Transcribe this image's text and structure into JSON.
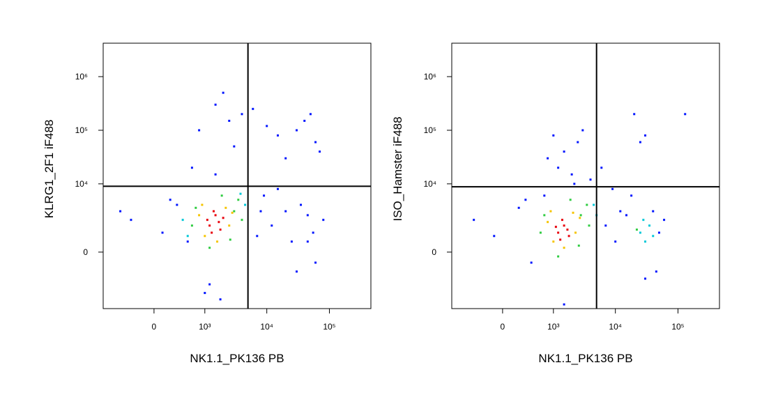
{
  "chart_data": [
    {
      "type": "scatter",
      "x_label": "NK1.1_PK136 PB",
      "y_label": "KLRG1_2F1 iF488",
      "xscale": "biexponential",
      "yscale": "biexponential",
      "xlim": [
        -1000,
        460000
      ],
      "ylim": [
        -6000,
        4200000
      ],
      "xticks": [
        0,
        {
          "value": 1000,
          "label": "10³"
        },
        {
          "value": 10000,
          "label": "10⁴"
        },
        {
          "value": 100000,
          "label": "10⁵"
        }
      ],
      "yticks": [
        0,
        {
          "value": 10000,
          "label": "10⁴"
        },
        {
          "value": 100000,
          "label": "10⁵"
        },
        {
          "value": 1000000,
          "label": "10⁶"
        }
      ],
      "gates": {
        "x": 5000,
        "y": 9000
      },
      "series": [
        {
          "color": "#0015ff",
          "x": [
            -300,
            100,
            300,
            -500,
            2000,
            1500,
            800,
            600,
            1500,
            3000,
            4000,
            2500,
            6000,
            10000,
            15000,
            20000,
            30000,
            40000,
            50000,
            60000,
            70000,
            8000,
            12000,
            25000,
            45000,
            55000,
            35000,
            9000,
            7000,
            1200,
            1800,
            1000,
            500,
            200,
            80000,
            45000,
            30000,
            20000,
            60000,
            15000
          ],
          "y": [
            2000,
            1000,
            4000,
            3000,
            500000,
            300000,
            100000,
            20000,
            15000,
            50000,
            200000,
            150000,
            250000,
            120000,
            80000,
            30000,
            100000,
            150000,
            200000,
            60000,
            40000,
            3000,
            1500,
            500,
            2500,
            1000,
            4000,
            6000,
            800,
            -2000,
            -4000,
            -3000,
            500,
            5000,
            2000,
            500,
            -1000,
            3000,
            -500,
            8000
          ]
        },
        {
          "color": "#00c8d8",
          "x": [
            400,
            4500,
            500,
            3800
          ],
          "y": [
            2000,
            4000,
            800,
            6500
          ]
        },
        {
          "color": "#2ecc40",
          "x": [
            600,
            3000,
            700,
            3500,
            1200,
            2600,
            1900,
            4000
          ],
          "y": [
            1500,
            3000,
            3500,
            5000,
            200,
            600,
            6000,
            2000
          ]
        },
        {
          "color": "#f5c400",
          "x": [
            800,
            2500,
            1000,
            2200,
            900,
            2800,
            1600
          ],
          "y": [
            2500,
            1500,
            800,
            3500,
            4000,
            2800,
            500
          ]
        },
        {
          "color": "#e8000b",
          "x": [
            1200,
            1500,
            1800,
            1400,
            1100,
            1700,
            2000,
            1300
          ],
          "y": [
            1500,
            2500,
            1200,
            3000,
            2000,
            1800,
            2200,
            1000
          ]
        }
      ]
    },
    {
      "type": "scatter",
      "x_label": "NK1.1_PK136 PB",
      "y_label": "ISO_Hamster iF488",
      "xscale": "biexponential",
      "yscale": "biexponential",
      "xlim": [
        -1000,
        460000
      ],
      "ylim": [
        -6000,
        4200000
      ],
      "xticks": [
        0,
        {
          "value": 1000,
          "label": "10³"
        },
        {
          "value": 10000,
          "label": "10⁴"
        },
        {
          "value": 100000,
          "label": "10⁵"
        }
      ],
      "yticks": [
        0,
        {
          "value": 10000,
          "label": "10⁴"
        },
        {
          "value": 100000,
          "label": "10⁵"
        },
        {
          "value": 1000000,
          "label": "10⁶"
        }
      ],
      "gates": {
        "x": 5000,
        "y": 8800
      },
      "series": [
        {
          "color": "#0015ff",
          "x": [
            -400,
            -100,
            200,
            400,
            1000,
            1500,
            2500,
            3000,
            800,
            1200,
            2000,
            4000,
            6000,
            9000,
            12000,
            20000,
            25000,
            30000,
            40000,
            50000,
            18000,
            130000,
            7000,
            10000,
            15000,
            30000,
            45000,
            60000,
            700,
            300,
            1500,
            2200
          ],
          "y": [
            2000,
            800,
            3500,
            -500,
            80000,
            40000,
            60000,
            100000,
            30000,
            20000,
            15000,
            12000,
            20000,
            8000,
            3000,
            200000,
            60000,
            80000,
            3000,
            1000,
            6000,
            200000,
            1500,
            500,
            2500,
            -1500,
            -1000,
            2000,
            6000,
            5000,
            -5000,
            10000
          ]
        },
        {
          "color": "#00c8d8",
          "x": [
            25000,
            30000,
            35000,
            28000,
            40000,
            4500,
            5000
          ],
          "y": [
            1000,
            500,
            1500,
            2000,
            800,
            4000,
            2500
          ]
        },
        {
          "color": "#2ecc40",
          "x": [
            600,
            2800,
            700,
            3500,
            1200,
            2600,
            1900,
            3800,
            22000
          ],
          "y": [
            1000,
            2500,
            2500,
            4000,
            -200,
            300,
            5000,
            1500,
            1200
          ]
        },
        {
          "color": "#f5c400",
          "x": [
            800,
            2300,
            1000,
            2100,
            900,
            2700,
            1500
          ],
          "y": [
            1800,
            1000,
            500,
            2800,
            3000,
            2200,
            200
          ]
        },
        {
          "color": "#e8000b",
          "x": [
            1200,
            1500,
            1800,
            1400,
            1100,
            1700,
            1300
          ],
          "y": [
            1000,
            1500,
            800,
            2000,
            1400,
            1200,
            600
          ]
        }
      ]
    }
  ]
}
